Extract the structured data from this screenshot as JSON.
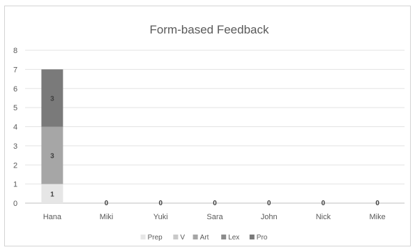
{
  "chart_data": {
    "type": "bar",
    "stacked": true,
    "title": "Form-based Feedback",
    "xlabel": "",
    "ylabel": "",
    "categories": [
      "Hana",
      "Miki",
      "Yuki",
      "Sara",
      "John",
      "Nick",
      "Mike"
    ],
    "ylim": [
      0,
      8
    ],
    "yticks": [
      "0",
      "1",
      "2",
      "3",
      "4",
      "5",
      "6",
      "7",
      "8"
    ],
    "grid": true,
    "legend_position": "bottom",
    "series": [
      {
        "name": "Prep",
        "values": [
          1,
          0,
          0,
          0,
          0,
          0,
          0
        ],
        "color": "#e6e6e6"
      },
      {
        "name": "V",
        "values": [
          0,
          0,
          0,
          0,
          0,
          0,
          0
        ],
        "color": "#c9c9c9"
      },
      {
        "name": "Art",
        "values": [
          3,
          0,
          0,
          0,
          0,
          0,
          0
        ],
        "color": "#a6a6a6"
      },
      {
        "name": "Lex",
        "values": [
          0,
          0,
          0,
          0,
          0,
          0,
          0
        ],
        "color": "#8c8c8c"
      },
      {
        "name": "Pro",
        "values": [
          3,
          0,
          0,
          0,
          0,
          0,
          0
        ],
        "color": "#7a7a7a"
      }
    ],
    "category_total_labels": [
      "",
      "0",
      "0",
      "0",
      "0",
      "0",
      "0"
    ]
  }
}
